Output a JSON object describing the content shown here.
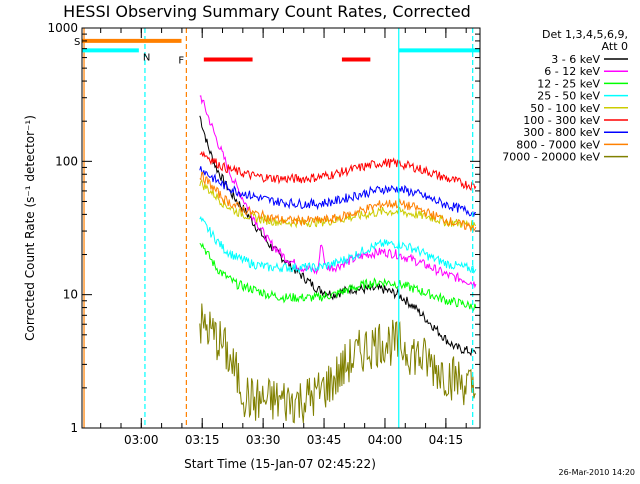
{
  "chart_data": {
    "type": "line",
    "title": "HESSI Observing Summary Count Rates, Corrected",
    "xlabel": "Start Time (15-Jan-07 02:45:22)",
    "ylabel": "Corrected Count Rate (s⁻¹ detector⁻¹)",
    "x_units": "minutes after 02:45:22",
    "xlim": [
      0,
      98
    ],
    "ylim": [
      1,
      1000
    ],
    "y_scale": "log",
    "grid": false,
    "legend_position": "right",
    "x_ticks": [
      {
        "label": "03:00",
        "x": 14.6
      },
      {
        "label": "03:15",
        "x": 29.6
      },
      {
        "label": "03:30",
        "x": 44.6
      },
      {
        "label": "03:45",
        "x": 59.6
      },
      {
        "label": "04:00",
        "x": 74.6
      },
      {
        "label": "04:15",
        "x": 89.6
      }
    ],
    "y_ticks": [
      {
        "label": "1",
        "value": 1
      },
      {
        "label": "10",
        "value": 10
      },
      {
        "label": "100",
        "value": 100
      },
      {
        "label": "1000",
        "value": 1000
      }
    ],
    "legend_header": [
      "Det 1,3,4,5,6,9,",
      "Att 0"
    ],
    "series": [
      {
        "name": "3 - 6 keV",
        "color": "#000000",
        "x": [
          29,
          31,
          33,
          35,
          37,
          40,
          43,
          46,
          50,
          54,
          58,
          62,
          66,
          70,
          74,
          78,
          82,
          86,
          90,
          92,
          95,
          97
        ],
        "y": [
          220,
          130,
          90,
          70,
          56,
          43,
          32,
          24,
          18,
          14,
          11,
          10,
          11,
          11,
          11,
          10,
          8,
          6,
          4.5,
          4,
          3.8,
          3.6
        ]
      },
      {
        "name": "6 - 12 keV",
        "color": "#ff00ff",
        "x": [
          29,
          31,
          33,
          35,
          37,
          40,
          43,
          46,
          50,
          54,
          58,
          59,
          60,
          62,
          66,
          70,
          74,
          78,
          82,
          86,
          90,
          94,
          97
        ],
        "y": [
          320,
          220,
          150,
          105,
          75,
          50,
          35,
          25,
          19,
          16,
          15,
          25,
          16,
          16,
          18,
          20,
          21,
          20,
          18,
          16,
          14,
          13,
          12
        ]
      },
      {
        "name": "12 - 25 keV",
        "color": "#00ff00",
        "x": [
          29,
          31,
          33,
          35,
          38,
          42,
          46,
          50,
          54,
          58,
          62,
          66,
          70,
          74,
          78,
          82,
          86,
          90,
          94,
          97
        ],
        "y": [
          26,
          20,
          16,
          14,
          12,
          11,
          10,
          9.5,
          9.5,
          9.5,
          10,
          11,
          12,
          12.5,
          12,
          11,
          10,
          9,
          8.5,
          8
        ]
      },
      {
        "name": "25 - 50 keV",
        "color": "#00ffff",
        "x": [
          29,
          31,
          33,
          35,
          38,
          42,
          46,
          50,
          54,
          58,
          62,
          66,
          70,
          74,
          78,
          82,
          86,
          90,
          94,
          97
        ],
        "y": [
          37,
          31,
          26,
          22,
          19,
          17,
          16,
          16,
          16,
          16,
          17,
          19,
          22,
          24,
          24,
          22,
          19,
          17,
          16,
          15.5
        ]
      },
      {
        "name": "50 - 100 keV",
        "color": "#cccc00",
        "x": [
          29,
          31,
          33,
          35,
          38,
          42,
          46,
          50,
          54,
          58,
          62,
          66,
          70,
          74,
          78,
          82,
          86,
          90,
          94,
          97
        ],
        "y": [
          70,
          62,
          55,
          48,
          42,
          38,
          36,
          35,
          35,
          35,
          36,
          38,
          40,
          42,
          42,
          40,
          38,
          35,
          34,
          33
        ]
      },
      {
        "name": "100 - 300 keV",
        "color": "#ff0000",
        "x": [
          29,
          31,
          33,
          35,
          38,
          42,
          46,
          50,
          54,
          58,
          62,
          66,
          70,
          74,
          78,
          82,
          86,
          90,
          94,
          97
        ],
        "y": [
          120,
          108,
          98,
          90,
          84,
          78,
          75,
          74,
          74,
          76,
          80,
          86,
          92,
          98,
          96,
          90,
          82,
          74,
          68,
          65
        ]
      },
      {
        "name": "300 - 800 keV",
        "color": "#0000ff",
        "x": [
          29,
          31,
          33,
          35,
          38,
          42,
          46,
          50,
          54,
          58,
          62,
          66,
          70,
          74,
          78,
          82,
          86,
          90,
          94,
          97
        ],
        "y": [
          90,
          80,
          72,
          66,
          60,
          55,
          51,
          49,
          48,
          48,
          50,
          54,
          58,
          62,
          62,
          58,
          52,
          47,
          43,
          41
        ]
      },
      {
        "name": "800 - 7000 keV",
        "color": "#ff8000",
        "x": [
          29,
          31,
          33,
          35,
          38,
          42,
          46,
          50,
          54,
          58,
          62,
          66,
          70,
          74,
          78,
          82,
          86,
          90,
          94,
          97
        ],
        "y": [
          80,
          70,
          60,
          52,
          46,
          41,
          38,
          36,
          36,
          36,
          37,
          40,
          44,
          48,
          48,
          45,
          40,
          36,
          33,
          32
        ]
      },
      {
        "name": "7000 - 20000 keV",
        "color": "#808000",
        "x": [
          29,
          31,
          33,
          35,
          38,
          40,
          42,
          46,
          50,
          54,
          58,
          62,
          66,
          70,
          74,
          78,
          82,
          86,
          90,
          94,
          97
        ],
        "y": [
          6,
          5.5,
          4.8,
          4,
          2.5,
          1.8,
          1.6,
          1.6,
          1.6,
          1.6,
          1.8,
          2.3,
          3.2,
          4,
          4.5,
          4.2,
          3.6,
          3,
          2.5,
          2.2,
          1.8
        ]
      }
    ],
    "annotations": {
      "saa_label": "S",
      "saa_bar": {
        "x": [
          0,
          24.5
        ],
        "y": 800,
        "color": "#ff8000"
      },
      "night_label": "N",
      "night_bars": [
        {
          "x": [
            0,
            14
          ],
          "y": 680
        },
        {
          "x": [
            78,
            98
          ],
          "y": 680
        }
      ],
      "night_color": "#00ffff",
      "flare_label": "F",
      "flare_bars": [
        {
          "x": [
            30,
            42
          ]
        },
        {
          "x": [
            64,
            71
          ]
        }
      ],
      "flare_y": 580,
      "flare_color": "#ff0000",
      "vertical_lines": [
        {
          "x": 0.5,
          "color": "#ff8000",
          "dashed": false
        },
        {
          "x": 15.5,
          "color": "#00ffff",
          "dashed": true
        },
        {
          "x": 25.7,
          "color": "#ff8000",
          "dashed": true
        },
        {
          "x": 78,
          "color": "#00ffff",
          "dashed": false
        },
        {
          "x": 96.2,
          "color": "#00ffff",
          "dashed": true
        }
      ]
    },
    "footer_stamp": "26-Mar-2010 14:20"
  }
}
